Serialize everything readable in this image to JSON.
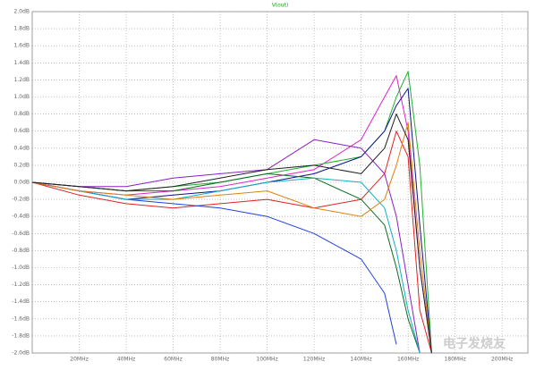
{
  "chart_data": {
    "type": "line",
    "title": "V(out)",
    "x": [
      0,
      20,
      40,
      60,
      80,
      100,
      120,
      140,
      150,
      155,
      160,
      165,
      170
    ],
    "xlim": [
      0,
      211
    ],
    "xticks": [
      {
        "value": 20,
        "label": "20MHz"
      },
      {
        "value": 40,
        "label": "40MHz"
      },
      {
        "value": 60,
        "label": "60MHz"
      },
      {
        "value": 80,
        "label": "80MHz"
      },
      {
        "value": 100,
        "label": "100MHz"
      },
      {
        "value": 120,
        "label": "120MHz"
      },
      {
        "value": 140,
        "label": "140MHz"
      },
      {
        "value": 160,
        "label": "160MHz"
      },
      {
        "value": 180,
        "label": "180MHz"
      },
      {
        "value": 200,
        "label": "200MHz"
      }
    ],
    "ylim": [
      -2.0,
      2.0
    ],
    "yticks": [
      {
        "value": -2.0,
        "label": "-2.0dB"
      },
      {
        "value": -1.8,
        "label": "-1.8dB"
      },
      {
        "value": -1.6,
        "label": "-1.6dB"
      },
      {
        "value": -1.4,
        "label": "-1.4dB"
      },
      {
        "value": -1.2,
        "label": "-1.2dB"
      },
      {
        "value": -1.0,
        "label": "-1.0dB"
      },
      {
        "value": -0.8,
        "label": "-0.8dB"
      },
      {
        "value": -0.6,
        "label": "-0.6dB"
      },
      {
        "value": -0.4,
        "label": "-0.4dB"
      },
      {
        "value": -0.2,
        "label": "-0.2dB"
      },
      {
        "value": 0,
        "label": "0.0dB"
      },
      {
        "value": 0.2,
        "label": "0.2dB"
      },
      {
        "value": 0.4,
        "label": "0.4dB"
      },
      {
        "value": 0.6,
        "label": "0.6dB"
      },
      {
        "value": 0.8,
        "label": "0.8dB"
      },
      {
        "value": 1.0,
        "label": "1.0dB"
      },
      {
        "value": 1.2,
        "label": "1.2dB"
      },
      {
        "value": 1.4,
        "label": "1.4dB"
      },
      {
        "value": 1.6,
        "label": "1.6dB"
      },
      {
        "value": 1.8,
        "label": "1.8dB"
      },
      {
        "value": 2.0,
        "label": "2.0dB"
      }
    ],
    "grid": true,
    "watermark": "电子发烧友",
    "series": [
      {
        "color": "#e020d0",
        "values": [
          0,
          -0.1,
          -0.15,
          -0.1,
          -0.05,
          0.05,
          0.15,
          0.5,
          1.0,
          1.25,
          0.6,
          -1.0,
          -2.0
        ]
      },
      {
        "color": "#20b030",
        "values": [
          0,
          -0.05,
          -0.1,
          -0.05,
          0.0,
          0.1,
          0.2,
          0.3,
          0.6,
          1.0,
          1.3,
          0.2,
          -2.0
        ]
      },
      {
        "color": "#10108a",
        "values": [
          0,
          -0.1,
          -0.2,
          -0.15,
          -0.1,
          0.0,
          0.1,
          0.3,
          0.6,
          0.9,
          1.1,
          -0.5,
          -2.0
        ]
      },
      {
        "color": "#e02020",
        "values": [
          0,
          -0.15,
          -0.25,
          -0.3,
          -0.25,
          -0.2,
          -0.3,
          -0.2,
          0.1,
          0.6,
          0.3,
          -1.5,
          -2.0
        ]
      },
      {
        "color": "#2040e0",
        "values": [
          0,
          -0.1,
          -0.2,
          -0.25,
          -0.3,
          -0.4,
          -0.6,
          -0.9,
          -1.3,
          -1.9,
          null,
          null,
          null
        ]
      },
      {
        "color": "#0a6a20",
        "values": [
          0,
          -0.05,
          -0.1,
          -0.1,
          0.0,
          0.1,
          0.05,
          -0.2,
          -0.5,
          -1.0,
          -1.6,
          -2.0,
          null
        ]
      },
      {
        "color": "#8a20c0",
        "values": [
          0,
          -0.05,
          -0.05,
          0.05,
          0.1,
          0.15,
          0.5,
          0.4,
          0.1,
          -0.4,
          -1.2,
          -2.0,
          null
        ]
      },
      {
        "color": "#10b0c0",
        "values": [
          0,
          -0.1,
          -0.2,
          -0.2,
          -0.1,
          0.0,
          0.05,
          0.0,
          -0.3,
          -0.8,
          -1.5,
          -2.0,
          null
        ]
      },
      {
        "color": "#e08010",
        "values": [
          0,
          -0.1,
          -0.15,
          -0.2,
          -0.15,
          -0.1,
          -0.3,
          -0.4,
          -0.2,
          0.2,
          0.7,
          -0.8,
          -2.0
        ]
      },
      {
        "color": "#202020",
        "values": [
          0,
          -0.05,
          -0.1,
          -0.05,
          0.05,
          0.15,
          0.2,
          0.1,
          0.4,
          0.8,
          0.5,
          -1.0,
          -2.0
        ]
      }
    ]
  }
}
